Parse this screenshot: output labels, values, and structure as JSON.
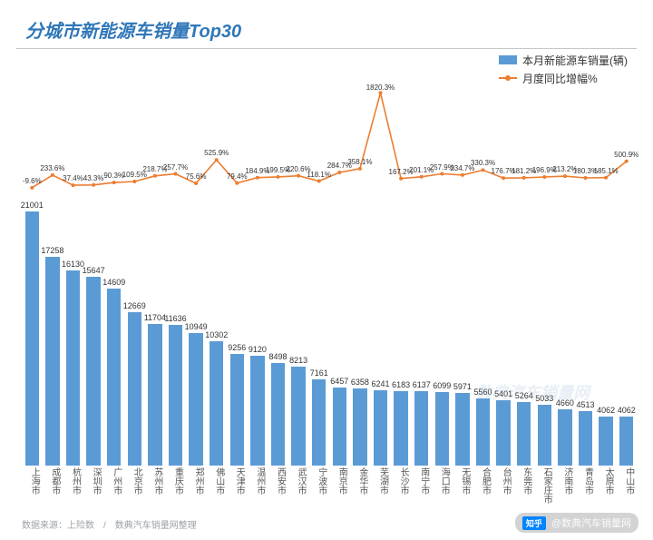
{
  "title": "分城市新能源车销量Top30",
  "legend": {
    "bar_label": "本月新能源车销量(辆)",
    "line_label": "月度同比增幅%"
  },
  "colors": {
    "title": "#2f77b8",
    "rule": "#c5c7ca",
    "bar": "#5b9bd5",
    "line": "#ed7d31",
    "text": "#333333",
    "axis_text": "#555555",
    "footer": "#9ea3a8",
    "background": "#ffffff"
  },
  "typography": {
    "title_fontsize": 20,
    "legend_fontsize": 12,
    "bar_label_fontsize": 9,
    "line_label_fontsize": 8,
    "xaxis_fontsize": 10,
    "footer_fontsize": 10
  },
  "bar_chart": {
    "type": "bar",
    "y_max": 22000,
    "bar_width_ratio": 0.68,
    "categories": [
      "上海市",
      "成都市",
      "杭州市",
      "深圳市",
      "广州市",
      "北京市",
      "苏州市",
      "重庆市",
      "郑州市",
      "佛山市",
      "天津市",
      "温州市",
      "西安市",
      "武汉市",
      "宁波市",
      "南京市",
      "金华市",
      "芜湖市",
      "长沙市",
      "南宁市",
      "海口市",
      "无锡市",
      "合肥市",
      "台州市",
      "东莞市",
      "石家庄市",
      "济南市",
      "青岛市",
      "太原市",
      "中山市"
    ],
    "values": [
      21001,
      17258,
      16130,
      15647,
      14609,
      12669,
      11704,
      11636,
      10949,
      10302,
      9256,
      9120,
      8498,
      8213,
      7161,
      6457,
      6358,
      6241,
      6183,
      6137,
      6099,
      5971,
      5560,
      5401,
      5264,
      5033,
      4660,
      4513,
      4062,
      4062
    ]
  },
  "line_chart": {
    "type": "line",
    "y_min": -100,
    "y_max": 2000,
    "values": [
      -9.6,
      233.6,
      37.4,
      43.3,
      90.3,
      109.5,
      218.7,
      257.7,
      75.6,
      525.9,
      79.4,
      184.9,
      199.5,
      220.6,
      118.1,
      284.7,
      358.1,
      1820.3,
      167.2,
      201.1,
      257.9,
      234.7,
      330.3,
      176.7,
      181.2,
      196.9,
      213.2,
      180.3,
      185.1,
      500.9
    ],
    "labels": [
      "-9.6%",
      "233.6%",
      "37.4%",
      "43.3%",
      "90.3%",
      "109.5%",
      "218.7%",
      "257.7%",
      "75.6%",
      "525.9%",
      "79.4%",
      "184.9%",
      "199.5%",
      "220.6%",
      "118.1%",
      "284.7%",
      "358.1%",
      "1820.3%",
      "167.2%",
      "201.1%",
      "257.9%",
      "234.7%",
      "330.3%",
      "176.7%",
      "181.2%",
      "196.9%",
      "213.2%",
      "180.3%",
      "185.1%",
      "500.9%"
    ],
    "marker_size": 4,
    "line_width": 1.6
  },
  "footer": "数据来源：上险数　/　数典汽车销量网整理",
  "watermark": "数典汽车销量网",
  "badge": {
    "logo": "知乎",
    "text": "@数典汽车销量网"
  }
}
